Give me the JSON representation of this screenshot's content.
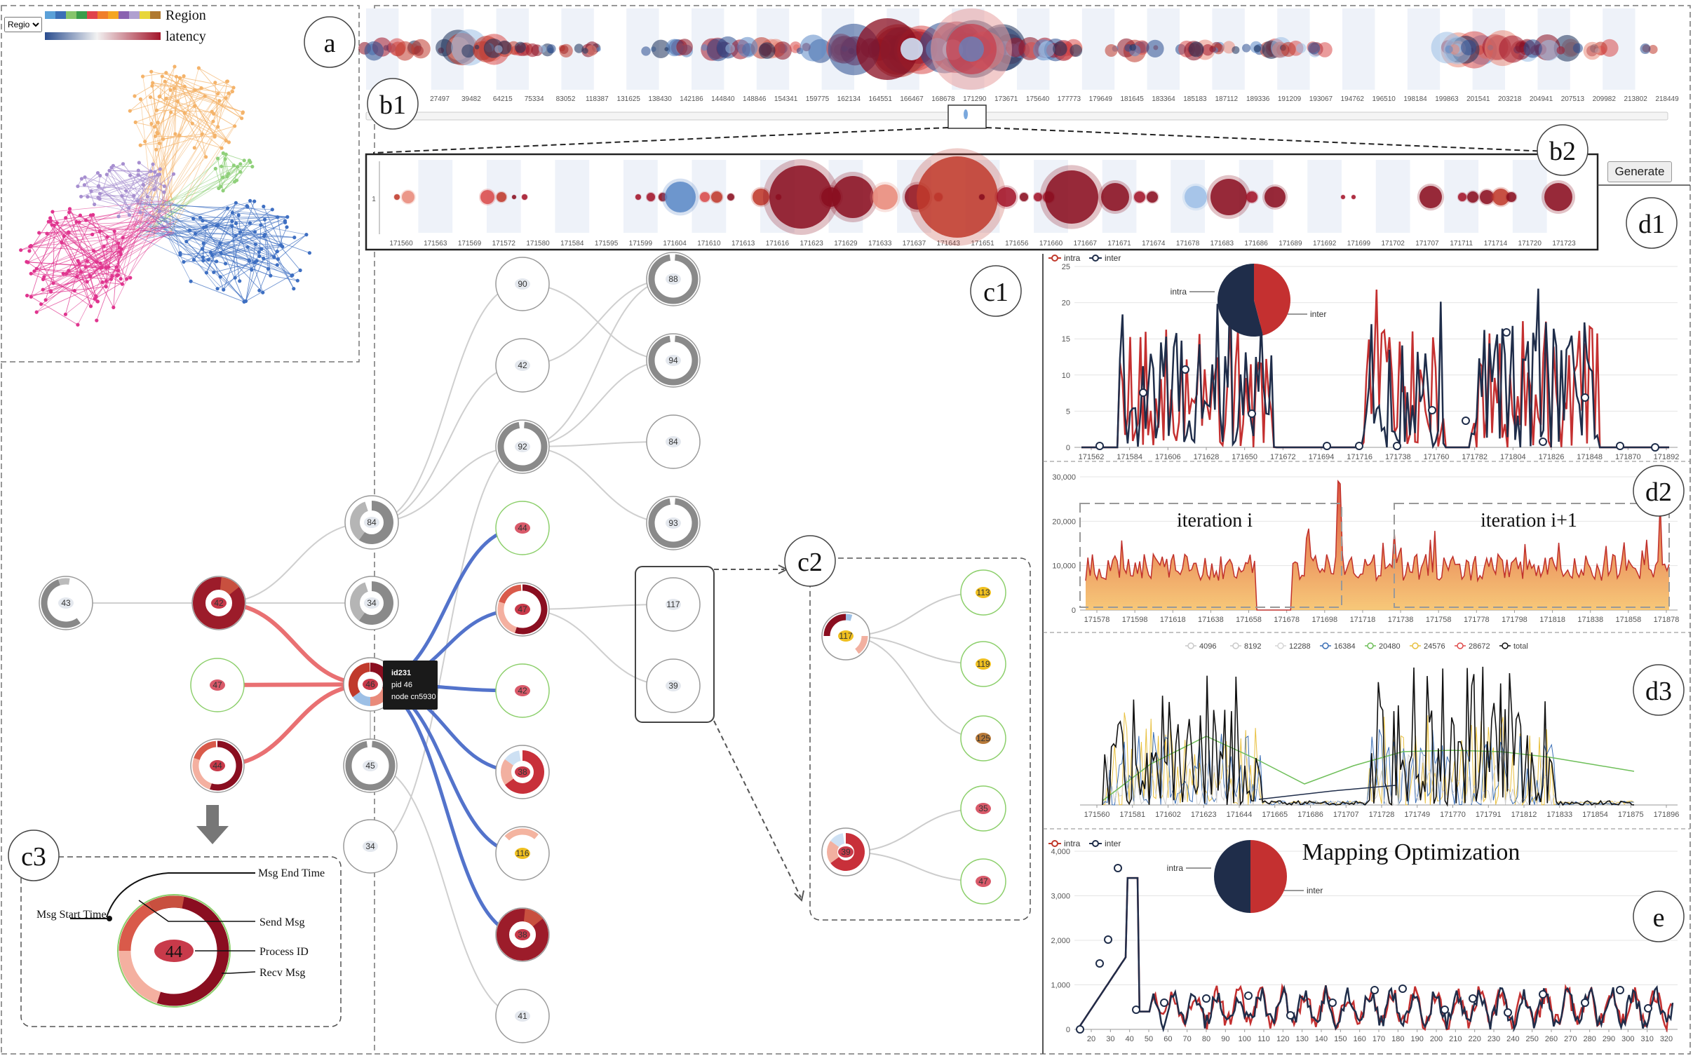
{
  "region_select": {
    "value": "Region",
    "options": [
      "Region"
    ]
  },
  "legend": {
    "region_label": "Region",
    "latency_label": "latency",
    "region_colors": [
      "#5aa0d8",
      "#3b6fb6",
      "#86c56b",
      "#3a9d4a",
      "#e0434a",
      "#f07f2a",
      "#f5a623",
      "#8a62b0",
      "#b0a0d0",
      "#e8d63a",
      "#b0792f"
    ]
  },
  "panel_labels": {
    "a": "a",
    "b1": "b1",
    "b2": "b2",
    "c1": "c1",
    "c2": "c2",
    "c3": "c3",
    "d1": "d1",
    "d2": "d2",
    "d3": "d3",
    "e": "e"
  },
  "b1": {
    "ticks": [
      "27497",
      "39482",
      "64215",
      "75334",
      "83052",
      "118387",
      "131625",
      "138430",
      "142186",
      "144840",
      "148846",
      "154341",
      "159775",
      "162134",
      "164551",
      "166467",
      "168678",
      "171290",
      "173671",
      "175640",
      "177773",
      "179649",
      "181645",
      "183364",
      "185183",
      "187112",
      "189336",
      "191209",
      "193067",
      "194762",
      "196510",
      "198184",
      "199863",
      "201541",
      "203218",
      "204941",
      "207513",
      "209982",
      "213802",
      "218449"
    ]
  },
  "b2": {
    "row_label": "1",
    "ticks": [
      "171560",
      "171563",
      "171569",
      "171572",
      "171580",
      "171584",
      "171595",
      "171599",
      "171604",
      "171610",
      "171613",
      "171616",
      "171623",
      "171629",
      "171633",
      "171637",
      "171643",
      "171651",
      "171656",
      "171660",
      "171667",
      "171671",
      "171674",
      "171678",
      "171683",
      "171686",
      "171689",
      "171692",
      "171699",
      "171702",
      "171707",
      "171711",
      "171714",
      "171720",
      "171723"
    ]
  },
  "generate_label": "Generate",
  "d1": {
    "legend": [
      "intra",
      "inter"
    ],
    "pie_labels": [
      "intra",
      "inter"
    ],
    "intra_share": 0.54,
    "y_ticks": [
      "0",
      "5",
      "10",
      "15",
      "20",
      "25"
    ],
    "x_ticks": [
      "171562",
      "171584",
      "171606",
      "171628",
      "171650",
      "171672",
      "171694",
      "171716",
      "171738",
      "171760",
      "171782",
      "171804",
      "171826",
      "171848",
      "171870",
      "171892"
    ]
  },
  "d2": {
    "annotations": [
      "iteration i",
      "iteration i+1"
    ],
    "y_ticks": [
      "0",
      "10,000",
      "20,000",
      "30,000"
    ],
    "x_ticks": [
      "171578",
      "171598",
      "171618",
      "171638",
      "171658",
      "171678",
      "171698",
      "171718",
      "171738",
      "171758",
      "171778",
      "171798",
      "171818",
      "171838",
      "171858",
      "171878"
    ]
  },
  "d3": {
    "legend": [
      "4096",
      "8192",
      "12288",
      "16384",
      "20480",
      "24576",
      "28672",
      "total"
    ],
    "legend_colors": [
      "#c9c9c9",
      "#c9c9c9",
      "#d6d6d6",
      "#3b6fb6",
      "#6fbf5a",
      "#e8c040",
      "#e04a4a",
      "#111111"
    ],
    "x_ticks": [
      "171560",
      "171581",
      "171602",
      "171623",
      "171644",
      "171665",
      "171686",
      "171707",
      "171728",
      "171749",
      "171770",
      "171791",
      "171812",
      "171833",
      "171854",
      "171875",
      "171896"
    ]
  },
  "e": {
    "title": "Mapping Optimization",
    "legend": [
      "intra",
      "inter"
    ],
    "pie_labels": [
      "intra",
      "inter"
    ],
    "intra_share": 0.5,
    "y_ticks": [
      "0",
      "1,000",
      "2,000",
      "3,000",
      "4,000"
    ],
    "x_ticks": [
      "20",
      "30",
      "40",
      "50",
      "60",
      "70",
      "80",
      "90",
      "100",
      "110",
      "120",
      "130",
      "140",
      "150",
      "160",
      "170",
      "180",
      "190",
      "200",
      "210",
      "220",
      "230",
      "240",
      "250",
      "260",
      "270",
      "280",
      "290",
      "300",
      "310",
      "320"
    ]
  },
  "tooltip": {
    "lines": [
      "id231",
      "pid    46",
      "node cn5930"
    ]
  },
  "c1_nodes": [
    {
      "id": "n43",
      "label": "43",
      "fill": "#e4e8ee",
      "ring": "gray-partial"
    },
    {
      "id": "n42a",
      "label": "42",
      "fill": "#c83a4a",
      "ring": "red-full"
    },
    {
      "id": "n47a",
      "label": "47",
      "fill": "#d95a6a",
      "ring": "green"
    },
    {
      "id": "n44a",
      "label": "44",
      "fill": "#c83a4a",
      "ring": "red-mixed"
    },
    {
      "id": "n84a",
      "label": "84",
      "fill": "#e4e8ee",
      "ring": "gray-pie"
    },
    {
      "id": "n34a",
      "label": "34",
      "fill": "#e4e8ee",
      "ring": "gray-pie"
    },
    {
      "id": "n46",
      "label": "46",
      "fill": "#c83a4a",
      "ring": "mixed"
    },
    {
      "id": "n45",
      "label": "45",
      "fill": "#e4e8ee",
      "ring": "gray-ring"
    },
    {
      "id": "n34b",
      "label": "34",
      "fill": "#e4e8ee",
      "ring": "plain"
    },
    {
      "id": "n90",
      "label": "90",
      "fill": "#e4e8ee",
      "ring": "plain"
    },
    {
      "id": "n42b",
      "label": "42",
      "fill": "#e4e8ee",
      "ring": "plain"
    },
    {
      "id": "n92",
      "label": "92",
      "fill": "#e4e8ee",
      "ring": "gray-ring"
    },
    {
      "id": "n44b",
      "label": "44",
      "fill": "#d95a6a",
      "ring": "green"
    },
    {
      "id": "n47b",
      "label": "47",
      "fill": "#c83a4a",
      "ring": "red-mixed"
    },
    {
      "id": "n42c",
      "label": "42",
      "fill": "#d95a6a",
      "ring": "green"
    },
    {
      "id": "n38a",
      "label": "38",
      "fill": "#c83a4a",
      "ring": "red-pie"
    },
    {
      "id": "n116",
      "label": "116",
      "fill": "#f0c020",
      "ring": "salmon"
    },
    {
      "id": "n38b",
      "label": "38",
      "fill": "#c83a4a",
      "ring": "red-full"
    },
    {
      "id": "n41",
      "label": "41",
      "fill": "#e4e8ee",
      "ring": "plain"
    },
    {
      "id": "n88",
      "label": "88",
      "fill": "#e4e8ee",
      "ring": "gray-ring"
    },
    {
      "id": "n94",
      "label": "94",
      "fill": "#e4e8ee",
      "ring": "gray-ring"
    },
    {
      "id": "n84b",
      "label": "84",
      "fill": "#e4e8ee",
      "ring": "plain"
    },
    {
      "id": "n93",
      "label": "93",
      "fill": "#e4e8ee",
      "ring": "gray-ring"
    },
    {
      "id": "n117",
      "label": "117",
      "fill": "#e4e8ee",
      "ring": "plain"
    },
    {
      "id": "n39",
      "label": "39",
      "fill": "#e4e8ee",
      "ring": "plain"
    }
  ],
  "c2_nodes": [
    {
      "id": "m117",
      "label": "117",
      "fill": "#f0c020",
      "ring": "mixed-small"
    },
    {
      "id": "m39",
      "label": "39",
      "fill": "#c83a4a",
      "ring": "red-pie"
    },
    {
      "id": "m113",
      "label": "113",
      "fill": "#f0c020",
      "ring": "green"
    },
    {
      "id": "m119",
      "label": "119",
      "fill": "#f0c020",
      "ring": "green"
    },
    {
      "id": "m125",
      "label": "125",
      "fill": "#b87a3a",
      "ring": "green"
    },
    {
      "id": "m35",
      "label": "35",
      "fill": "#d95a6a",
      "ring": "green"
    },
    {
      "id": "m47",
      "label": "47",
      "fill": "#d95a6a",
      "ring": "green"
    }
  ],
  "c3": {
    "node_label": "44",
    "annotations": [
      "Msg End Time",
      "Msg Start Time",
      "Send Msg",
      "Process ID",
      "Recv Msg"
    ]
  }
}
